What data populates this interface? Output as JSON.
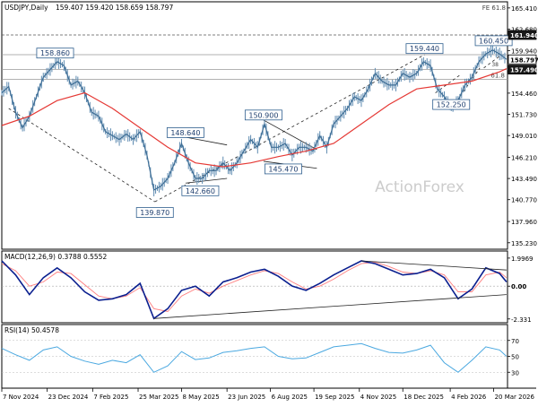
{
  "chart_data": {
    "type": "line",
    "subtype": "candlestick-with-indicators",
    "header": {
      "symbol": "USDJPY,Daily",
      "ohlc": "159.407 159.420 158.659 158.797",
      "fib_label": "FE 61.8"
    },
    "watermark": "ActionForex",
    "price_axis": {
      "ticks": [
        165.41,
        162.68,
        159.94,
        157.21,
        154.46,
        151.73,
        149.01,
        146.21,
        143.49,
        140.77,
        137.96,
        135.23
      ],
      "tick_labels": [
        "165.410",
        "162.680",
        "159.940",
        "157.210",
        "154.460",
        "151.730",
        "149.010",
        "146.210",
        "143.490",
        "140.770",
        "137.960",
        "135.230"
      ],
      "ylim": [
        134.4,
        166.2
      ]
    },
    "price_tags": [
      {
        "label": "161.940",
        "value": 161.94,
        "style": "dark"
      },
      {
        "label": "158.797",
        "value": 158.797,
        "style": "light"
      },
      {
        "label": "157.490",
        "value": 157.49,
        "style": "dark"
      }
    ],
    "hlines": [
      {
        "value": 161.94,
        "dashed": true
      },
      {
        "value": 159.4,
        "dashed": false
      },
      {
        "value": 157.49,
        "dashed": false
      },
      {
        "value": 156.25,
        "dashed": false,
        "label": "61.8"
      }
    ],
    "fib_mini_label": "38",
    "annotations": [
      {
        "label": "158.860",
        "date": "2024-12-31",
        "value": 158.86
      },
      {
        "label": "139.870",
        "date": "2025-04-11",
        "value": 139.87
      },
      {
        "label": "148.640",
        "date": "2025-05-12",
        "value": 148.64
      },
      {
        "label": "142.660",
        "date": "2025-05-27",
        "value": 142.66
      },
      {
        "label": "150.900",
        "date": "2025-07-30",
        "value": 150.9
      },
      {
        "label": "145.470",
        "date": "2025-08-19",
        "value": 145.47
      },
      {
        "label": "159.440",
        "date": "2026-01-09",
        "value": 159.44
      },
      {
        "label": "152.250",
        "date": "2026-02-05",
        "value": 152.25
      },
      {
        "label": "160.450",
        "date": "2026-03-20",
        "value": 160.45
      }
    ],
    "x_axis": {
      "start": "2024-11-07",
      "end": "2026-04-03",
      "tick_dates": [
        "2024-11-07",
        "2024-12-23",
        "2025-02-07",
        "2025-03-25",
        "2025-05-08",
        "2025-06-23",
        "2025-08-06",
        "2025-09-19",
        "2025-11-04",
        "2025-12-18",
        "2026-02-04",
        "2026-03-20"
      ],
      "tick_labels": [
        "7 Nov 2024",
        "23 Dec 2024",
        "7 Feb 2025",
        "25 Mar 2025",
        "8 May 2025",
        "23 Jun 2025",
        "6 Aug 2025",
        "19 Sep 2025",
        "4 Nov 2025",
        "18 Dec 2025",
        "4 Feb 2026",
        "20 Mar 2026"
      ]
    },
    "price_series": {
      "name": "USDJPY",
      "x": [
        "2024-11-07",
        "2024-11-14",
        "2024-11-21",
        "2024-11-28",
        "2024-12-05",
        "2024-12-12",
        "2024-12-19",
        "2024-12-26",
        "2025-01-02",
        "2025-01-09",
        "2025-01-16",
        "2025-01-23",
        "2025-01-30",
        "2025-02-06",
        "2025-02-13",
        "2025-02-20",
        "2025-02-27",
        "2025-03-06",
        "2025-03-13",
        "2025-03-20",
        "2025-03-27",
        "2025-04-03",
        "2025-04-10",
        "2025-04-17",
        "2025-04-24",
        "2025-05-01",
        "2025-05-08",
        "2025-05-15",
        "2025-05-22",
        "2025-05-29",
        "2025-06-05",
        "2025-06-12",
        "2025-06-19",
        "2025-06-26",
        "2025-07-03",
        "2025-07-10",
        "2025-07-17",
        "2025-07-24",
        "2025-07-31",
        "2025-08-07",
        "2025-08-14",
        "2025-08-21",
        "2025-08-28",
        "2025-09-04",
        "2025-09-11",
        "2025-09-18",
        "2025-09-25",
        "2025-10-02",
        "2025-10-09",
        "2025-10-16",
        "2025-10-23",
        "2025-10-30",
        "2025-11-06",
        "2025-11-13",
        "2025-11-20",
        "2025-11-27",
        "2025-12-04",
        "2025-12-11",
        "2025-12-18",
        "2025-12-25",
        "2026-01-01",
        "2026-01-08",
        "2026-01-15",
        "2026-01-22",
        "2026-01-29",
        "2026-02-05",
        "2026-02-12",
        "2026-02-19",
        "2026-02-26",
        "2026-03-05",
        "2026-03-12",
        "2026-03-19",
        "2026-03-26",
        "2026-04-02"
      ],
      "values": [
        154.5,
        155.3,
        152.0,
        150.0,
        151.5,
        154.0,
        156.5,
        157.5,
        158.5,
        158.0,
        155.5,
        156.0,
        154.5,
        152.0,
        151.5,
        149.5,
        149.0,
        148.5,
        149.2,
        148.5,
        149.5,
        146.5,
        142.0,
        142.5,
        143.5,
        145.5,
        148.0,
        145.5,
        143.5,
        143.5,
        144.5,
        144.5,
        145.5,
        144.5,
        145.5,
        147.0,
        148.5,
        147.5,
        150.5,
        147.5,
        147.5,
        148.0,
        146.5,
        147.5,
        147.5,
        147.0,
        149.0,
        147.5,
        150.5,
        151.5,
        152.5,
        154.0,
        153.5,
        155.0,
        157.0,
        156.0,
        155.5,
        155.5,
        157.0,
        156.5,
        157.0,
        158.5,
        158.0,
        155.0,
        154.0,
        152.5,
        153.5,
        155.5,
        156.5,
        158.5,
        159.5,
        160.0,
        159.5,
        158.8
      ]
    },
    "moving_average": {
      "x": [
        "2024-11-07",
        "2024-12-05",
        "2025-01-02",
        "2025-01-30",
        "2025-02-27",
        "2025-03-27",
        "2025-04-24",
        "2025-05-22",
        "2025-06-19",
        "2025-07-17",
        "2025-08-14",
        "2025-09-11",
        "2025-10-09",
        "2025-11-06",
        "2025-12-04",
        "2026-01-01",
        "2026-01-29",
        "2026-02-26",
        "2026-03-26",
        "2026-04-02"
      ],
      "values": [
        150.3,
        151.5,
        153.5,
        154.5,
        152.5,
        150.0,
        147.5,
        145.5,
        145.0,
        145.5,
        146.3,
        147.0,
        148.0,
        150.5,
        153.0,
        155.0,
        155.5,
        156.0,
        157.2,
        157.6
      ]
    },
    "trendlines": [
      {
        "from": [
          "2024-11-14",
          152.5
        ],
        "to": [
          "2025-04-11",
          140.5
        ],
        "dashed": true
      },
      {
        "from": [
          "2025-04-11",
          140.5
        ],
        "to": [
          "2026-01-09",
          159.4
        ],
        "dashed": true
      },
      {
        "from": [
          "2025-05-12",
          148.8
        ],
        "to": [
          "2025-06-23",
          147.8
        ],
        "dashed": false
      },
      {
        "from": [
          "2025-05-12",
          142.9
        ],
        "to": [
          "2025-06-23",
          143.5
        ],
        "dashed": false
      },
      {
        "from": [
          "2025-07-30",
          151.0
        ],
        "to": [
          "2025-09-22",
          147.2
        ],
        "dashed": false
      },
      {
        "from": [
          "2025-07-30",
          145.7
        ],
        "to": [
          "2025-09-22",
          144.8
        ],
        "dashed": false
      },
      {
        "from": [
          "2026-01-20",
          154.5
        ],
        "to": [
          "2026-02-14",
          156.8
        ],
        "dashed": true
      },
      {
        "from": [
          "2026-02-05",
          152.4
        ],
        "to": [
          "2026-03-06",
          157.7
        ],
        "dashed": true
      },
      {
        "from": [
          "2026-03-10",
          157.7
        ],
        "to": [
          "2026-03-28",
          159.4
        ],
        "dashed": true
      }
    ],
    "macd": {
      "label": "MACD(12,26,9) 0.3788 0.5552",
      "ticks": [
        1.9969,
        0.0,
        -2.331
      ],
      "tick_labels": [
        "1.9969",
        "0.00",
        "-2.331"
      ],
      "ylim": [
        -2.6,
        2.5
      ],
      "x": [
        "2024-11-07",
        "2024-11-21",
        "2024-12-05",
        "2024-12-19",
        "2025-01-02",
        "2025-01-16",
        "2025-01-30",
        "2025-02-13",
        "2025-02-27",
        "2025-03-13",
        "2025-03-27",
        "2025-04-10",
        "2025-04-24",
        "2025-05-08",
        "2025-05-22",
        "2025-06-05",
        "2025-06-19",
        "2025-07-03",
        "2025-07-17",
        "2025-07-31",
        "2025-08-14",
        "2025-08-28",
        "2025-09-11",
        "2025-09-25",
        "2025-10-09",
        "2025-10-23",
        "2025-11-06",
        "2025-11-20",
        "2025-12-04",
        "2025-12-18",
        "2026-01-01",
        "2026-01-15",
        "2026-01-29",
        "2026-02-12",
        "2026-02-26",
        "2026-03-12",
        "2026-03-26",
        "2026-04-02"
      ],
      "values": [
        1.8,
        0.8,
        -0.6,
        0.6,
        1.3,
        0.6,
        -0.4,
        -1.0,
        -0.9,
        -0.6,
        0.2,
        -2.3,
        -1.6,
        -0.3,
        0.0,
        -0.7,
        0.3,
        0.6,
        1.0,
        1.2,
        0.7,
        0.0,
        -0.3,
        0.2,
        0.8,
        1.3,
        1.8,
        1.6,
        1.2,
        0.8,
        0.9,
        1.2,
        0.6,
        -0.9,
        -0.2,
        1.3,
        0.9,
        0.3
      ],
      "signal_values": [
        1.6,
        1.1,
        0.0,
        0.3,
        1.0,
        0.9,
        0.1,
        -0.7,
        -0.9,
        -0.7,
        -0.1,
        -1.6,
        -1.8,
        -0.7,
        -0.2,
        -0.5,
        0.0,
        0.4,
        0.8,
        1.1,
        0.9,
        0.3,
        -0.2,
        0.0,
        0.5,
        1.1,
        1.6,
        1.7,
        1.4,
        1.0,
        0.9,
        1.1,
        0.8,
        -0.4,
        -0.4,
        0.8,
        1.0,
        0.6
      ],
      "trendlines": [
        {
          "from": [
            "2025-04-10",
            -2.3
          ],
          "to": [
            "2026-04-02",
            -0.6
          ]
        },
        {
          "from": [
            "2025-11-06",
            1.8
          ],
          "to": [
            "2026-04-02",
            1.15
          ]
        }
      ]
    },
    "rsi": {
      "label": "RSI(14) 50.4578",
      "ticks": [
        70,
        50,
        30
      ],
      "tick_labels": [
        "70",
        "50",
        "30"
      ],
      "ylim": [
        10,
        90
      ],
      "x": [
        "2024-11-07",
        "2024-11-21",
        "2024-12-05",
        "2024-12-19",
        "2025-01-02",
        "2025-01-16",
        "2025-01-30",
        "2025-02-13",
        "2025-02-27",
        "2025-03-13",
        "2025-03-27",
        "2025-04-10",
        "2025-04-24",
        "2025-05-08",
        "2025-05-22",
        "2025-06-05",
        "2025-06-19",
        "2025-07-03",
        "2025-07-17",
        "2025-07-31",
        "2025-08-14",
        "2025-08-28",
        "2025-09-11",
        "2025-09-25",
        "2025-10-09",
        "2025-10-23",
        "2025-11-06",
        "2025-11-20",
        "2025-12-04",
        "2025-12-18",
        "2026-01-01",
        "2026-01-15",
        "2026-01-29",
        "2026-02-12",
        "2026-02-26",
        "2026-03-12",
        "2026-03-26",
        "2026-04-02"
      ],
      "values": [
        60,
        52,
        45,
        58,
        62,
        50,
        44,
        40,
        45,
        42,
        52,
        30,
        38,
        56,
        46,
        48,
        55,
        57,
        60,
        62,
        50,
        47,
        48,
        55,
        62,
        64,
        66,
        60,
        55,
        54,
        58,
        64,
        42,
        30,
        45,
        62,
        58,
        50
      ]
    }
  }
}
